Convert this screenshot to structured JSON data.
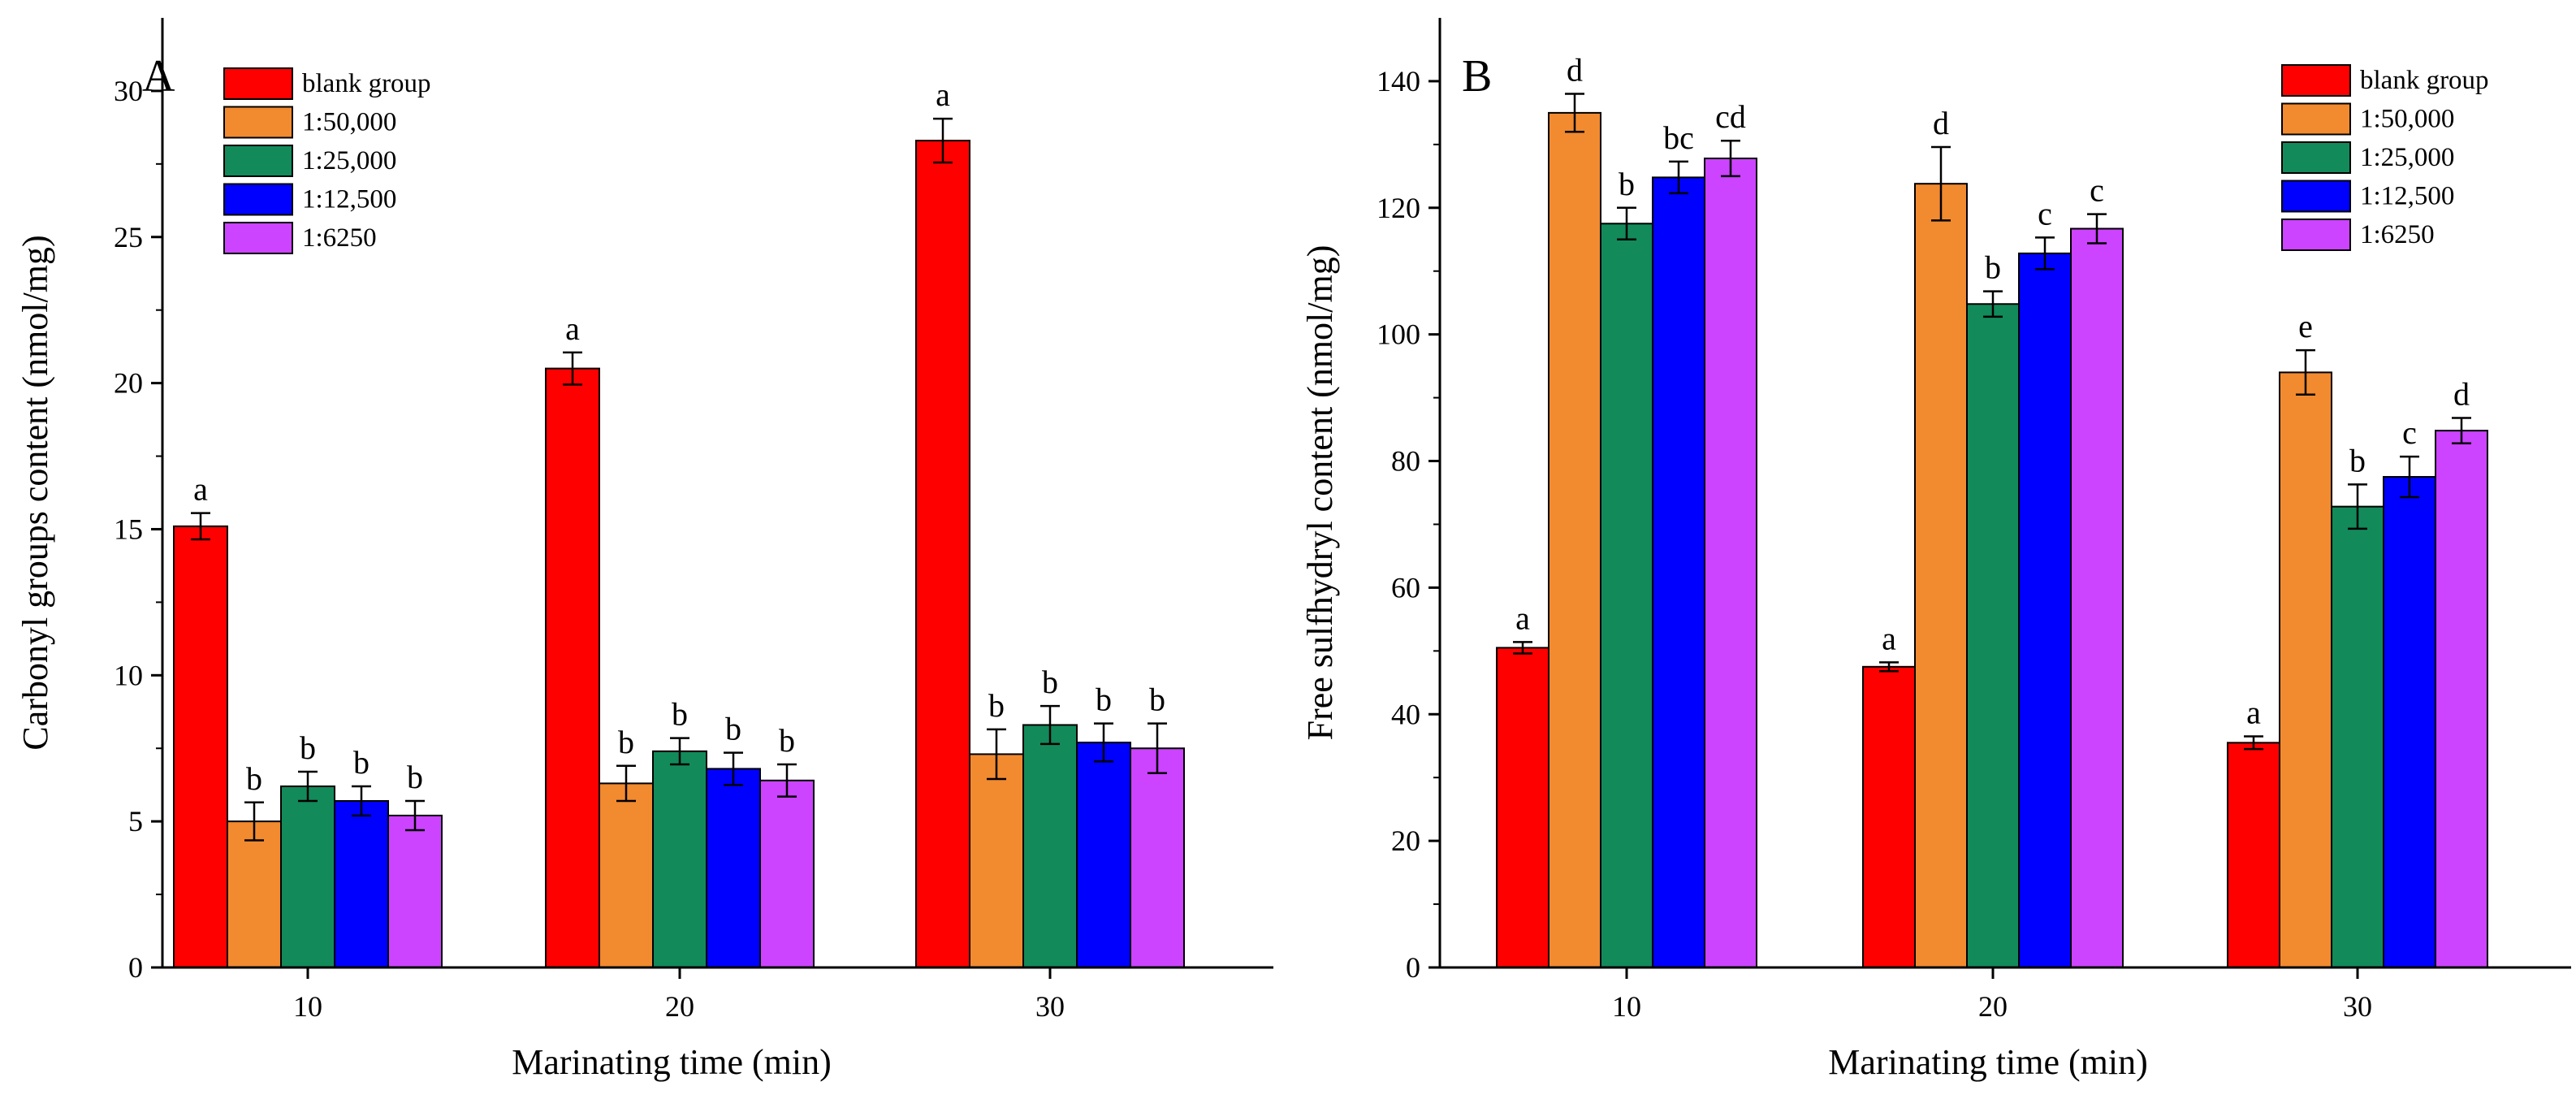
{
  "chart_data": [
    {
      "type": "bar",
      "panel_label": "A",
      "title": "",
      "xlabel": "Marinating time (min)",
      "ylabel": "Carbonyl groups content (nmol/mg)",
      "categories": [
        "10",
        "20",
        "30"
      ],
      "ylim": [
        0,
        32.5
      ],
      "yticks": [
        0,
        5,
        10,
        15,
        20,
        25,
        30
      ],
      "grid": false,
      "legend_position": "top-left",
      "series": [
        {
          "name": "blank group",
          "color": "#ff0000",
          "values": [
            15.1,
            20.5,
            28.3
          ],
          "errors": [
            0.45,
            0.55,
            0.75
          ],
          "letters": [
            "a",
            "a",
            "a"
          ]
        },
        {
          "name": "1:50,000",
          "color": "#f28a30",
          "values": [
            5.0,
            6.3,
            7.3
          ],
          "errors": [
            0.65,
            0.6,
            0.85
          ],
          "letters": [
            "b",
            "b",
            "b"
          ]
        },
        {
          "name": "1:25,000",
          "color": "#138a5a",
          "values": [
            6.2,
            7.4,
            8.3
          ],
          "errors": [
            0.5,
            0.45,
            0.65
          ],
          "letters": [
            "b",
            "b",
            "b"
          ]
        },
        {
          "name": "1:12,500",
          "color": "#0000ff",
          "values": [
            5.7,
            6.8,
            7.7
          ],
          "errors": [
            0.5,
            0.55,
            0.65
          ],
          "letters": [
            "b",
            "b",
            "b"
          ]
        },
        {
          "name": "1:6250",
          "color": "#cc44ff",
          "values": [
            5.2,
            6.4,
            7.5
          ],
          "errors": [
            0.5,
            0.55,
            0.85
          ],
          "letters": [
            "b",
            "b",
            "b"
          ]
        }
      ]
    },
    {
      "type": "bar",
      "panel_label": "B",
      "title": "",
      "xlabel": "Marinating time (min)",
      "ylabel": "Free sulfhydryl content (nmol/mg)",
      "categories": [
        "10",
        "20",
        "30"
      ],
      "ylim": [
        0,
        150
      ],
      "yticks": [
        0,
        20,
        40,
        60,
        80,
        100,
        120,
        140
      ],
      "grid": false,
      "legend_position": "top-right",
      "series": [
        {
          "name": "blank group",
          "color": "#ff0000",
          "values": [
            50.5,
            47.5,
            35.5
          ],
          "errors": [
            0.9,
            0.7,
            1.0
          ],
          "letters": [
            "a",
            "a",
            "a"
          ]
        },
        {
          "name": "1:50,000",
          "color": "#f28a30",
          "values": [
            135.0,
            123.8,
            94.0
          ],
          "errors": [
            3.0,
            5.8,
            3.5
          ],
          "letters": [
            "d",
            "d",
            "e"
          ]
        },
        {
          "name": "1:25,000",
          "color": "#138a5a",
          "values": [
            117.5,
            104.8,
            72.8
          ],
          "errors": [
            2.5,
            2.0,
            3.5
          ],
          "letters": [
            "b",
            "b",
            "b"
          ]
        },
        {
          "name": "1:12,500",
          "color": "#0000ff",
          "values": [
            124.8,
            112.8,
            77.5
          ],
          "errors": [
            2.5,
            2.5,
            3.2
          ],
          "letters": [
            "bc",
            "c",
            "c"
          ]
        },
        {
          "name": "1:6250",
          "color": "#cc44ff",
          "values": [
            127.8,
            116.7,
            84.8
          ],
          "errors": [
            2.8,
            2.3,
            2.0
          ],
          "letters": [
            "cd",
            "c",
            "d"
          ]
        }
      ]
    }
  ]
}
